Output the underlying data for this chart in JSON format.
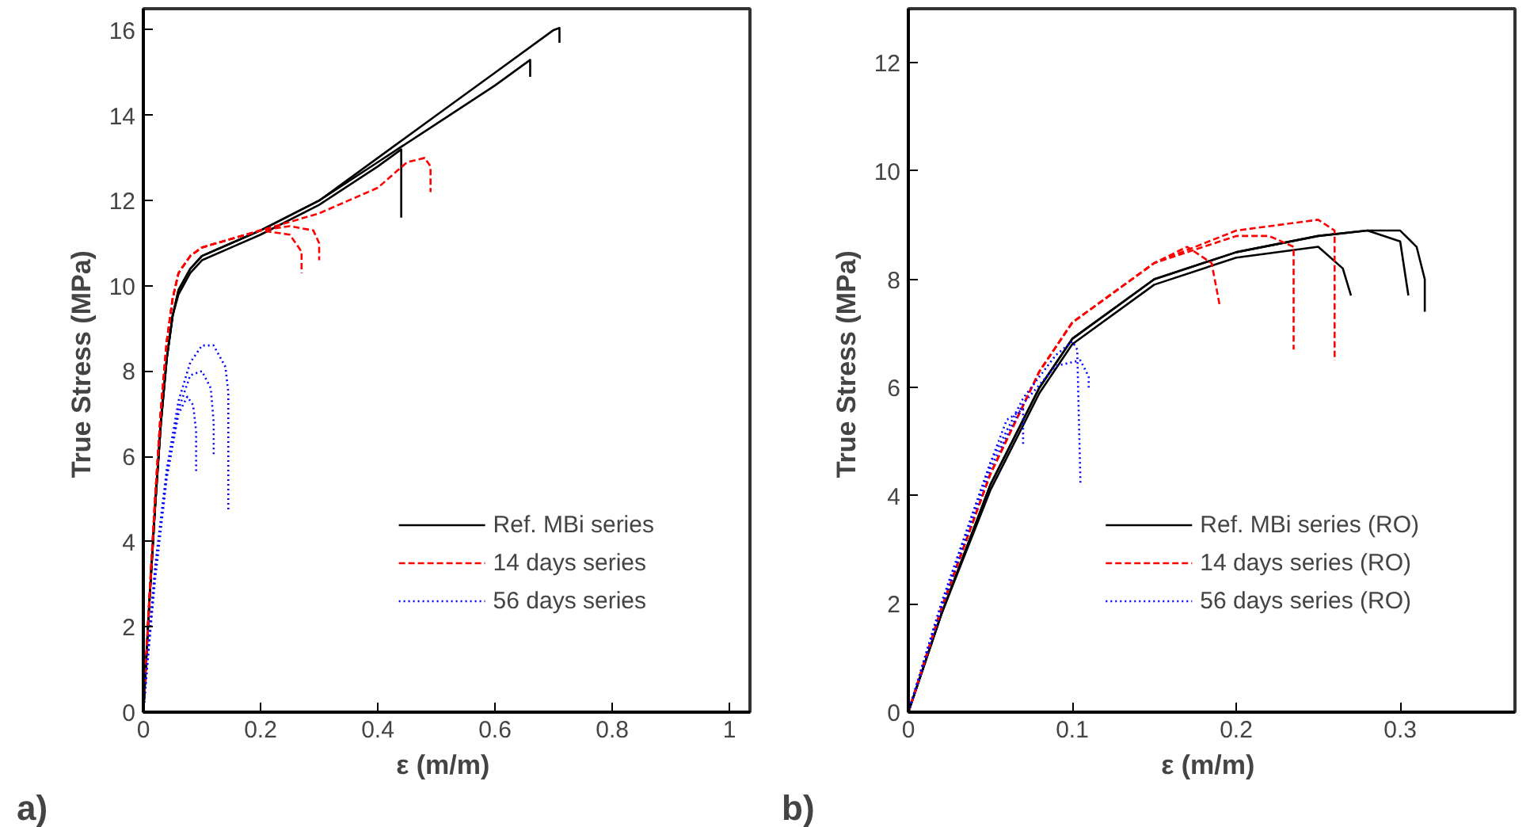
{
  "chart_data": [
    {
      "type": "line",
      "xlabel": "ε  (m/m)",
      "ylabel": "True Stress  (MPa)",
      "annotations": [
        "a)"
      ],
      "xlim": [
        0,
        1.035
      ],
      "ylim": [
        0,
        16.5
      ],
      "xticks": [
        0,
        0.2,
        0.4,
        0.6,
        0.8,
        1
      ],
      "yticks": [
        0,
        2,
        4,
        6,
        8,
        10,
        12,
        14,
        16
      ],
      "grid": false,
      "legend": "bottom right",
      "series": [
        {
          "name": "Ref. MBi series",
          "color": "#000000",
          "line_style": "solid",
          "x": [
            0,
            0.01,
            0.02,
            0.03,
            0.04,
            0.05,
            0.06,
            0.08,
            0.1,
            0.15,
            0.2,
            0.3,
            0.4,
            0.5,
            0.6,
            0.7,
            0.71,
            0.71
          ],
          "values": [
            0,
            2.5,
            4.8,
            6.8,
            8.3,
            9.3,
            9.9,
            10.4,
            10.7,
            11.0,
            11.3,
            12.0,
            13.0,
            14.0,
            15.0,
            16.0,
            16.05,
            15.7
          ]
        },
        {
          "color": "#000000",
          "line_style": "solid",
          "x": [
            0,
            0.01,
            0.02,
            0.03,
            0.04,
            0.05,
            0.06,
            0.08,
            0.1,
            0.15,
            0.2,
            0.3,
            0.4,
            0.44,
            0.44
          ],
          "values": [
            0,
            2.5,
            4.8,
            6.8,
            8.3,
            9.3,
            9.8,
            10.3,
            10.6,
            10.9,
            11.2,
            11.9,
            12.8,
            13.2,
            11.6
          ]
        },
        {
          "color": "#000000",
          "line_style": "solid",
          "x": [
            0,
            0.01,
            0.02,
            0.03,
            0.04,
            0.05,
            0.06,
            0.08,
            0.1,
            0.15,
            0.2,
            0.3,
            0.4,
            0.5,
            0.6,
            0.66,
            0.66
          ],
          "values": [
            0,
            2.5,
            4.8,
            6.8,
            8.3,
            9.3,
            9.9,
            10.4,
            10.7,
            11.0,
            11.3,
            12.0,
            12.9,
            13.8,
            14.7,
            15.3,
            14.9
          ]
        },
        {
          "name": "14 days series",
          "color": "#ff0000",
          "line_style": "dashed",
          "x": [
            0,
            0.01,
            0.02,
            0.03,
            0.04,
            0.05,
            0.06,
            0.08,
            0.1,
            0.15,
            0.2,
            0.3,
            0.4,
            0.45,
            0.48,
            0.49,
            0.49
          ],
          "values": [
            0,
            2.6,
            5.0,
            7.1,
            8.7,
            9.7,
            10.3,
            10.7,
            10.9,
            11.1,
            11.3,
            11.7,
            12.3,
            12.9,
            13.0,
            12.8,
            12.2
          ]
        },
        {
          "color": "#ff0000",
          "line_style": "dashed",
          "x": [
            0,
            0.01,
            0.02,
            0.03,
            0.04,
            0.05,
            0.06,
            0.08,
            0.1,
            0.15,
            0.2,
            0.25,
            0.27,
            0.27
          ],
          "values": [
            0,
            2.6,
            5.0,
            7.1,
            8.7,
            9.7,
            10.3,
            10.7,
            10.9,
            11.1,
            11.3,
            11.2,
            10.8,
            10.3
          ]
        },
        {
          "color": "#ff0000",
          "line_style": "dashed",
          "x": [
            0,
            0.01,
            0.02,
            0.03,
            0.04,
            0.05,
            0.06,
            0.08,
            0.1,
            0.15,
            0.2,
            0.25,
            0.29,
            0.3,
            0.3
          ],
          "values": [
            0,
            2.6,
            5.0,
            7.1,
            8.7,
            9.7,
            10.3,
            10.7,
            10.9,
            11.1,
            11.3,
            11.4,
            11.3,
            11.0,
            10.6
          ]
        },
        {
          "name": "56 days series",
          "color": "#0000ff",
          "line_style": "dotted",
          "x": [
            0,
            0.01,
            0.02,
            0.04,
            0.06,
            0.08,
            0.1,
            0.12,
            0.14,
            0.145,
            0.145
          ],
          "values": [
            0,
            1.8,
            3.4,
            5.7,
            7.3,
            8.2,
            8.6,
            8.6,
            8.1,
            7.5,
            4.7
          ]
        },
        {
          "color": "#0000ff",
          "line_style": "dotted",
          "x": [
            0,
            0.01,
            0.02,
            0.04,
            0.06,
            0.075,
            0.085,
            0.09,
            0.09
          ],
          "values": [
            0,
            1.6,
            3.1,
            5.5,
            7.0,
            7.4,
            7.2,
            6.6,
            5.6
          ]
        },
        {
          "color": "#0000ff",
          "line_style": "dotted",
          "x": [
            0,
            0.01,
            0.02,
            0.04,
            0.06,
            0.08,
            0.1,
            0.115,
            0.12,
            0.12
          ],
          "values": [
            0,
            1.7,
            3.3,
            5.6,
            7.1,
            7.9,
            8.0,
            7.6,
            6.8,
            6.0
          ]
        }
      ]
    },
    {
      "type": "line",
      "xlabel": "ε  (m/m)",
      "ylabel": "True Stress  (MPa)",
      "annotations": [
        "b)"
      ],
      "xlim": [
        0,
        0.37
      ],
      "ylim": [
        0,
        13
      ],
      "xticks": [
        0,
        0.1,
        0.2,
        0.3
      ],
      "yticks": [
        0,
        2,
        4,
        6,
        8,
        10,
        12
      ],
      "grid": false,
      "legend": "bottom right",
      "series": [
        {
          "name": "Ref. MBi series (RO)",
          "color": "#000000",
          "line_style": "solid",
          "x": [
            0,
            0.02,
            0.05,
            0.08,
            0.1,
            0.15,
            0.2,
            0.25,
            0.28,
            0.3,
            0.31,
            0.315,
            0.315
          ],
          "values": [
            0,
            1.8,
            4.2,
            6.0,
            6.9,
            8.0,
            8.5,
            8.8,
            8.9,
            8.9,
            8.6,
            8.0,
            7.4
          ]
        },
        {
          "color": "#000000",
          "line_style": "solid",
          "x": [
            0,
            0.02,
            0.05,
            0.08,
            0.1,
            0.15,
            0.2,
            0.25,
            0.265,
            0.27
          ],
          "values": [
            0,
            1.8,
            4.1,
            5.9,
            6.8,
            7.9,
            8.4,
            8.6,
            8.2,
            7.7
          ]
        },
        {
          "color": "#000000",
          "line_style": "solid",
          "x": [
            0,
            0.02,
            0.05,
            0.08,
            0.1,
            0.15,
            0.2,
            0.25,
            0.28,
            0.3,
            0.305
          ],
          "values": [
            0,
            1.8,
            4.2,
            6.0,
            6.9,
            8.0,
            8.5,
            8.8,
            8.9,
            8.7,
            7.7
          ]
        },
        {
          "name": "14 days series (RO)",
          "color": "#ff0000",
          "line_style": "dashed",
          "x": [
            0,
            0.02,
            0.05,
            0.08,
            0.1,
            0.15,
            0.2,
            0.25,
            0.26,
            0.26
          ],
          "values": [
            0,
            1.9,
            4.4,
            6.3,
            7.2,
            8.3,
            8.9,
            9.1,
            8.9,
            6.5
          ]
        },
        {
          "color": "#ff0000",
          "line_style": "dashed",
          "x": [
            0,
            0.02,
            0.05,
            0.08,
            0.1,
            0.15,
            0.17,
            0.185,
            0.19
          ],
          "values": [
            0,
            1.9,
            4.4,
            6.3,
            7.2,
            8.3,
            8.6,
            8.3,
            7.5
          ]
        },
        {
          "color": "#ff0000",
          "line_style": "dashed",
          "x": [
            0,
            0.02,
            0.05,
            0.08,
            0.1,
            0.15,
            0.2,
            0.22,
            0.235,
            0.235
          ],
          "values": [
            0,
            1.9,
            4.4,
            6.3,
            7.2,
            8.3,
            8.8,
            8.8,
            8.6,
            6.7
          ]
        },
        {
          "name": "56 days series (RO)",
          "color": "#0000ff",
          "line_style": "dotted",
          "x": [
            0,
            0.02,
            0.05,
            0.07,
            0.09,
            0.1,
            0.103,
            0.105
          ],
          "values": [
            0,
            2.0,
            4.6,
            5.8,
            6.6,
            6.85,
            6.7,
            4.2
          ]
        },
        {
          "color": "#0000ff",
          "line_style": "dotted",
          "x": [
            0,
            0.02,
            0.05,
            0.06,
            0.07,
            0.07
          ],
          "values": [
            0,
            2.0,
            4.6,
            5.4,
            5.6,
            4.9
          ]
        },
        {
          "color": "#0000ff",
          "line_style": "dotted",
          "x": [
            0,
            0.02,
            0.05,
            0.07,
            0.09,
            0.105,
            0.11,
            0.11
          ],
          "values": [
            0,
            1.9,
            4.5,
            5.7,
            6.4,
            6.5,
            6.2,
            6.0
          ]
        }
      ]
    }
  ]
}
